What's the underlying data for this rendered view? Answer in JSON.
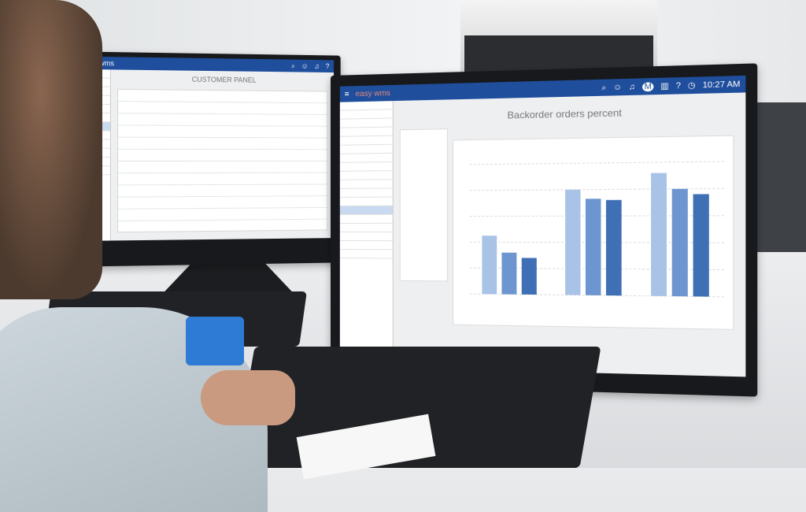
{
  "left_monitor": {
    "app_logo": "easy wms",
    "header_icons": [
      "search-icon",
      "user-icon",
      "bell-icon",
      "brand-icon",
      "chart-icon",
      "help-icon",
      "clock-icon"
    ],
    "panel_title": "CUSTOMER PANEL"
  },
  "right_monitor": {
    "app_logo": "easy wms",
    "clock": "10:27 AM",
    "header_icons": [
      "search-icon",
      "user-icon",
      "bell-icon",
      "brand-icon",
      "chart-icon",
      "help-icon",
      "clock-icon"
    ],
    "panel_title": "Backorder orders percent",
    "chart": {
      "type": "bar",
      "groups": 3,
      "series_colors": [
        "#a9c3e6",
        "#6d95cf",
        "#3f6fb5"
      ],
      "values": [
        [
          0.45,
          0.32,
          0.28
        ],
        [
          0.8,
          0.73,
          0.72
        ],
        [
          0.92,
          0.8,
          0.76
        ]
      ]
    }
  },
  "colors": {
    "header": "#1f4e9c",
    "stamp": "#2e7bd6"
  }
}
